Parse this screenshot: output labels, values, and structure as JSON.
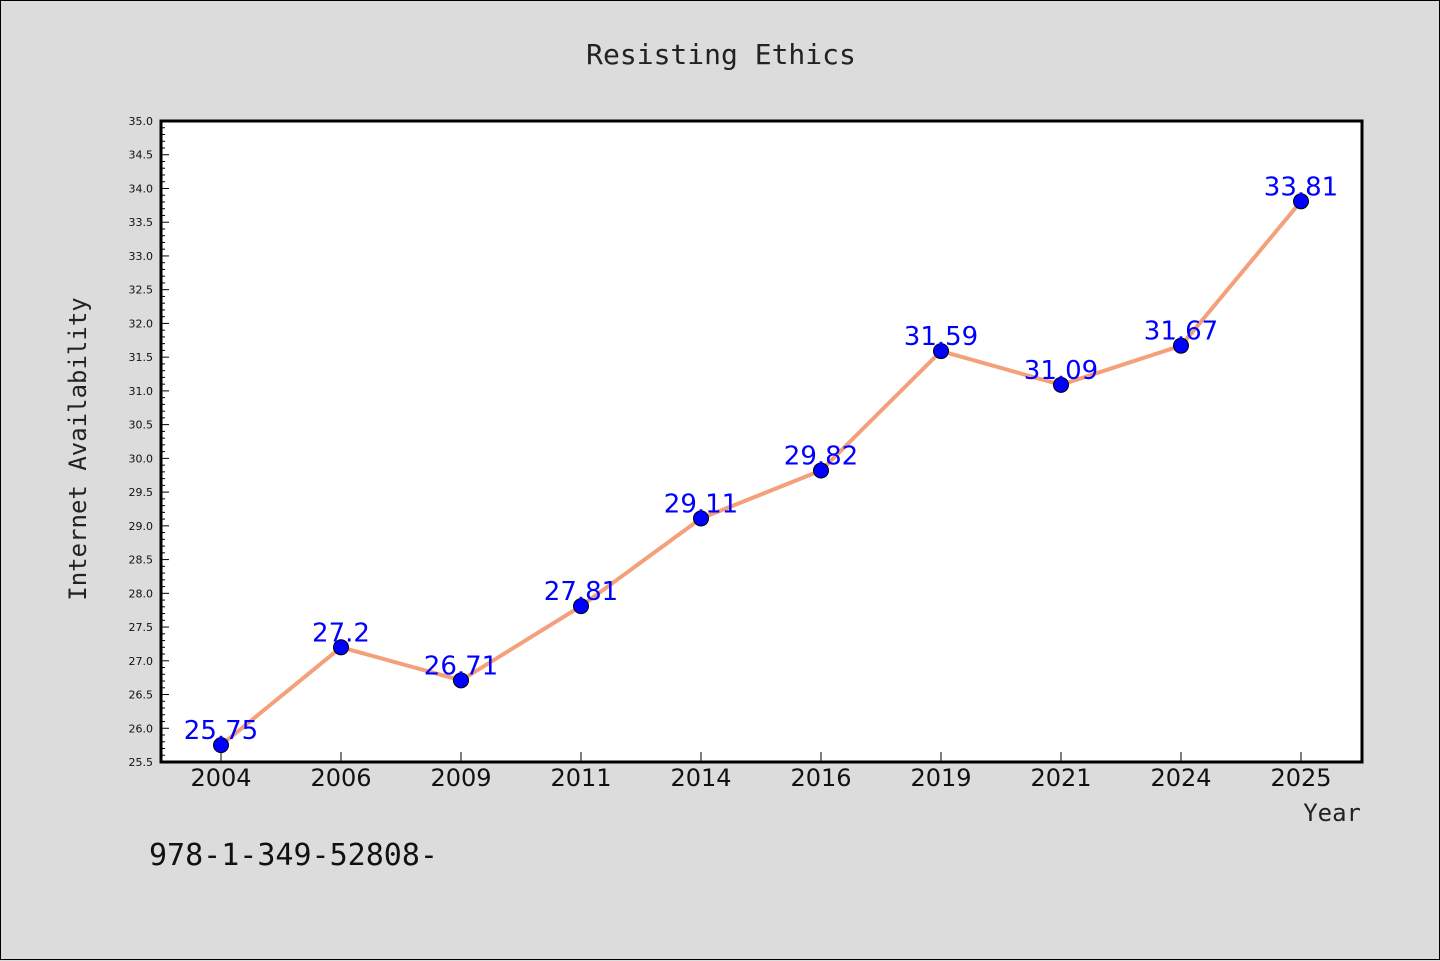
{
  "chart_data": {
    "type": "line",
    "title": "Resisting Ethics",
    "xlabel": "Year",
    "ylabel": "Internet Availability",
    "categories": [
      "2004",
      "2006",
      "2009",
      "2011",
      "2014",
      "2016",
      "2019",
      "2021",
      "2024",
      "2025"
    ],
    "series": [
      {
        "values": [
          25.75,
          27.2,
          26.71,
          27.81,
          29.11,
          29.82,
          31.59,
          31.09,
          31.67,
          33.81
        ],
        "data_labels": [
          "25.75",
          "27.2",
          "26.71",
          "27.81",
          "29.11",
          "29.82",
          "31.59",
          "31.09",
          "31.67",
          "33.81"
        ],
        "line_color": "#f4a07a",
        "marker_color": "#0000ff"
      }
    ],
    "ylim": [
      25.5,
      35.0
    ],
    "y_ticks": [
      "25.5",
      "26.0",
      "26.5",
      "27.0",
      "27.5",
      "28.0",
      "28.5",
      "29.0",
      "29.5",
      "30.0",
      "30.5",
      "31.0",
      "31.5",
      "32.0",
      "32.5",
      "33.0",
      "33.5",
      "34.0",
      "34.5",
      "35.0"
    ],
    "grid": false,
    "legend": "none",
    "background": "#dcdcdc",
    "plot_background": "#ffffff"
  },
  "footer": {
    "isbn": "978-1-349-52808-"
  }
}
